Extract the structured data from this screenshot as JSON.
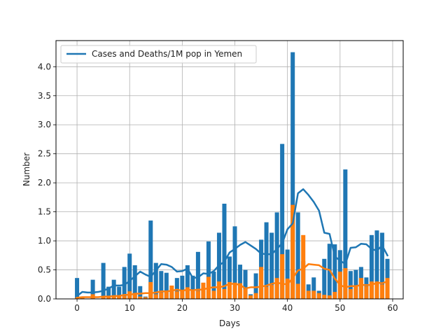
{
  "chart_data": {
    "type": "bar",
    "xlabel": "Days",
    "ylabel": "Number",
    "xlim": [
      -4,
      62
    ],
    "ylim": [
      0,
      4.45
    ],
    "xticks": [
      0,
      10,
      20,
      30,
      40,
      50,
      60
    ],
    "yticks": [
      0.0,
      0.5,
      1.0,
      1.5,
      2.0,
      2.5,
      3.0,
      3.5,
      4.0
    ],
    "grid": true,
    "legend_position": "top-left",
    "legend": [
      "Cases and Deaths/1M pop in Yemen"
    ],
    "colors": {
      "cases": "#1f77b4",
      "deaths": "#ff7f0e"
    },
    "x": [
      0,
      1,
      2,
      3,
      4,
      5,
      6,
      7,
      8,
      9,
      10,
      11,
      12,
      13,
      14,
      15,
      16,
      17,
      18,
      19,
      20,
      21,
      22,
      23,
      24,
      25,
      26,
      27,
      28,
      29,
      30,
      31,
      32,
      33,
      34,
      35,
      36,
      37,
      38,
      39,
      40,
      41,
      42,
      43,
      44,
      45,
      46,
      47,
      48,
      49,
      50,
      51,
      52,
      53,
      54,
      55,
      56,
      57,
      58,
      59
    ],
    "series": [
      {
        "name": "Cases and Deaths/1M pop in Yemen",
        "kind": "bar",
        "color": "#1f77b4",
        "values": [
          0.36,
          0.02,
          0.0,
          0.33,
          0.0,
          0.62,
          0.21,
          0.33,
          0.21,
          0.55,
          0.78,
          0.58,
          0.22,
          0.04,
          1.35,
          0.62,
          0.48,
          0.45,
          0.12,
          0.36,
          0.4,
          0.58,
          0.4,
          0.81,
          0.19,
          0.99,
          0.47,
          1.14,
          1.64,
          0.73,
          1.25,
          0.59,
          0.5,
          0.08,
          0.44,
          1.02,
          1.32,
          1.14,
          1.49,
          2.67,
          0.85,
          4.25,
          1.49,
          0.65,
          0.25,
          0.37,
          0.14,
          0.69,
          0.95,
          0.94,
          0.84,
          2.23,
          0.48,
          0.5,
          0.55,
          0.37,
          1.1,
          1.18,
          1.14,
          0.69
        ]
      },
      {
        "kind": "bar",
        "color": "#ff7f0e",
        "values": [
          0.02,
          0.02,
          0.0,
          0.08,
          0.0,
          0.05,
          0.04,
          0.05,
          0.06,
          0.05,
          0.13,
          0.1,
          0.04,
          0.03,
          0.29,
          0.08,
          0.11,
          0.12,
          0.23,
          0.13,
          0.15,
          0.2,
          0.14,
          0.14,
          0.28,
          0.38,
          0.14,
          0.3,
          0.17,
          0.29,
          0.28,
          0.27,
          0.17,
          0.06,
          0.1,
          0.55,
          0.21,
          0.24,
          0.36,
          0.77,
          0.35,
          1.62,
          0.26,
          1.1,
          0.14,
          0.14,
          0.1,
          0.07,
          0.06,
          0.12,
          0.47,
          0.53,
          0.17,
          0.23,
          0.36,
          0.22,
          0.3,
          0.3,
          0.25,
          0.36
        ]
      },
      {
        "kind": "line",
        "color": "#1f77b4",
        "values": [
          0.05,
          0.12,
          0.11,
          0.11,
          0.12,
          0.14,
          0.18,
          0.23,
          0.23,
          0.24,
          0.31,
          0.39,
          0.47,
          0.42,
          0.38,
          0.49,
          0.6,
          0.59,
          0.55,
          0.47,
          0.48,
          0.52,
          0.36,
          0.37,
          0.44,
          0.43,
          0.48,
          0.58,
          0.64,
          0.8,
          0.86,
          0.93,
          0.98,
          0.92,
          0.86,
          0.78,
          0.77,
          0.77,
          0.86,
          0.96,
          1.2,
          1.3,
          1.82,
          1.89,
          1.79,
          1.67,
          1.52,
          1.14,
          1.12,
          0.73,
          0.66,
          0.6,
          0.88,
          0.89,
          0.95,
          0.94,
          0.86,
          0.83,
          0.92,
          0.75
        ]
      },
      {
        "kind": "line",
        "color": "#ff7f0e",
        "values": [
          0.02,
          0.03,
          0.03,
          0.03,
          0.03,
          0.04,
          0.04,
          0.05,
          0.05,
          0.07,
          0.07,
          0.09,
          0.09,
          0.1,
          0.1,
          0.11,
          0.13,
          0.13,
          0.14,
          0.16,
          0.14,
          0.16,
          0.15,
          0.16,
          0.16,
          0.19,
          0.2,
          0.2,
          0.22,
          0.26,
          0.26,
          0.24,
          0.18,
          0.2,
          0.2,
          0.21,
          0.23,
          0.26,
          0.28,
          0.26,
          0.25,
          0.36,
          0.49,
          0.52,
          0.6,
          0.59,
          0.58,
          0.52,
          0.5,
          0.35,
          0.24,
          0.2,
          0.22,
          0.22,
          0.24,
          0.24,
          0.24,
          0.28,
          0.27,
          0.3
        ]
      }
    ]
  }
}
